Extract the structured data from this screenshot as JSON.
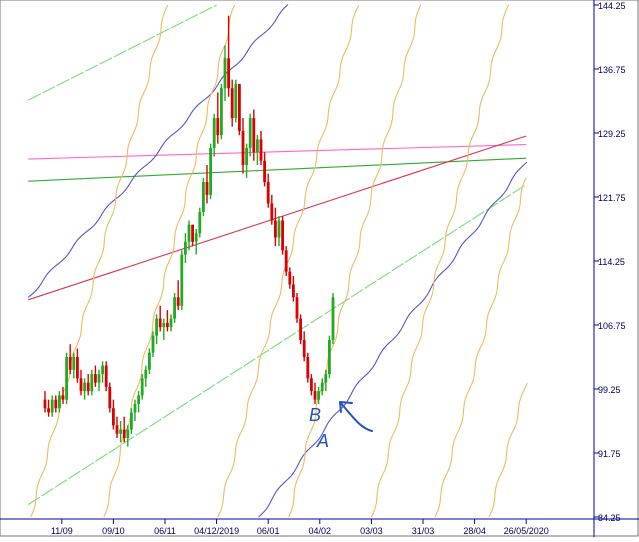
{
  "chart_data": {
    "type": "candlestick",
    "title": "",
    "xlabel": "",
    "ylabel": "",
    "ylim": [
      84.25,
      144.25
    ],
    "y_ticks": [
      144.25,
      136.75,
      129.25,
      121.75,
      114.25,
      106.75,
      99.25,
      91.75,
      84.25
    ],
    "x_tick_labels": [
      "11/09",
      "09/10",
      "06/11",
      "04/12/2019",
      "06/01",
      "04/02",
      "03/03",
      "31/03",
      "28/04",
      "26/05/2020"
    ],
    "grid": false,
    "legend": "none",
    "bars_index_range": [
      0,
      400
    ],
    "x_tick_positions_index": [
      14,
      57,
      100,
      143,
      186,
      229,
      272,
      315,
      358,
      401
    ],
    "candles": [
      [
        0,
        98.0,
        99.0,
        96.5,
        97.0
      ],
      [
        3,
        97.0,
        98.0,
        96.0,
        96.5
      ],
      [
        6,
        96.5,
        98.5,
        96.0,
        98.0
      ],
      [
        9,
        98.0,
        98.5,
        96.5,
        97.0
      ],
      [
        12,
        97.0,
        99.0,
        96.5,
        98.5
      ],
      [
        15,
        98.5,
        99.5,
        97.5,
        98.0
      ],
      [
        18,
        98.0,
        103.5,
        97.5,
        103.0
      ],
      [
        21,
        103.0,
        104.5,
        101.0,
        101.5
      ],
      [
        24,
        101.5,
        103.5,
        100.5,
        103.0
      ],
      [
        27,
        103.0,
        104.0,
        100.0,
        100.5
      ],
      [
        30,
        100.5,
        101.5,
        98.5,
        99.0
      ],
      [
        33,
        99.0,
        100.5,
        98.0,
        100.0
      ],
      [
        36,
        100.0,
        101.0,
        98.5,
        99.0
      ],
      [
        39,
        99.0,
        101.5,
        98.5,
        101.0
      ],
      [
        42,
        101.0,
        102.0,
        99.5,
        100.0
      ],
      [
        45,
        100.0,
        101.5,
        99.0,
        101.0
      ],
      [
        48,
        101.0,
        102.5,
        100.0,
        102.0
      ],
      [
        51,
        102.0,
        102.5,
        99.0,
        99.5
      ],
      [
        54,
        99.5,
        100.0,
        96.5,
        97.0
      ],
      [
        57,
        97.0,
        98.0,
        94.5,
        95.0
      ],
      [
        60,
        95.0,
        96.0,
        93.5,
        94.0
      ],
      [
        63,
        94.0,
        95.5,
        93.0,
        94.5
      ],
      [
        66,
        94.5,
        96.0,
        93.0,
        93.5
      ],
      [
        69,
        93.5,
        95.0,
        92.5,
        94.5
      ],
      [
        72,
        94.5,
        97.0,
        94.0,
        96.5
      ],
      [
        75,
        96.5,
        98.0,
        95.5,
        97.5
      ],
      [
        78,
        97.5,
        99.0,
        96.5,
        98.5
      ],
      [
        81,
        98.5,
        101.0,
        98.0,
        100.5
      ],
      [
        84,
        100.5,
        102.0,
        99.5,
        101.5
      ],
      [
        87,
        101.5,
        104.0,
        101.0,
        103.5
      ],
      [
        90,
        103.5,
        106.0,
        103.0,
        105.5
      ],
      [
        93,
        105.5,
        108.0,
        104.5,
        107.5
      ],
      [
        96,
        107.5,
        109.0,
        106.0,
        106.5
      ],
      [
        99,
        106.5,
        107.5,
        105.0,
        107.0
      ],
      [
        102,
        107.0,
        108.5,
        106.0,
        106.5
      ],
      [
        105,
        106.5,
        108.0,
        106.0,
        107.5
      ],
      [
        108,
        107.5,
        110.5,
        107.0,
        110.0
      ],
      [
        111,
        110.0,
        112.0,
        108.5,
        109.0
      ],
      [
        114,
        109.0,
        115.5,
        108.5,
        115.0
      ],
      [
        117,
        115.0,
        117.5,
        114.0,
        116.5
      ],
      [
        120,
        116.5,
        119.0,
        115.5,
        118.5
      ],
      [
        123,
        118.5,
        118.5,
        116.0,
        116.5
      ],
      [
        126,
        116.5,
        118.0,
        115.0,
        117.5
      ],
      [
        129,
        117.5,
        120.5,
        117.0,
        120.0
      ],
      [
        132,
        120.0,
        124.0,
        119.5,
        123.5
      ],
      [
        135,
        123.5,
        125.5,
        121.0,
        122.0
      ],
      [
        138,
        122.0,
        128.0,
        121.5,
        127.5
      ],
      [
        141,
        127.5,
        131.5,
        126.5,
        131.0
      ],
      [
        144,
        131.0,
        134.0,
        128.0,
        129.0
      ],
      [
        147,
        129.0,
        135.0,
        128.5,
        134.5
      ],
      [
        150,
        134.5,
        139.5,
        133.0,
        138.0
      ],
      [
        153,
        138.0,
        143.0,
        133.5,
        134.5
      ],
      [
        156,
        134.5,
        135.5,
        130.0,
        131.0
      ],
      [
        159,
        131.0,
        135.5,
        130.5,
        135.0
      ],
      [
        162,
        135.0,
        135.0,
        129.0,
        129.5
      ],
      [
        165,
        129.5,
        131.0,
        124.5,
        125.5
      ],
      [
        168,
        125.5,
        128.0,
        124.0,
        127.5
      ],
      [
        171,
        127.5,
        131.5,
        126.5,
        131.0
      ],
      [
        174,
        131.0,
        132.0,
        126.0,
        127.0
      ],
      [
        177,
        127.0,
        129.0,
        125.5,
        128.5
      ],
      [
        180,
        128.5,
        129.5,
        125.5,
        126.0
      ],
      [
        183,
        126.0,
        127.0,
        123.0,
        123.5
      ],
      [
        186,
        123.5,
        124.5,
        120.5,
        121.0
      ],
      [
        189,
        121.0,
        122.0,
        118.5,
        119.0
      ],
      [
        192,
        119.0,
        120.5,
        116.0,
        117.0
      ],
      [
        195,
        117.0,
        119.5,
        116.0,
        119.0
      ],
      [
        198,
        119.0,
        119.5,
        115.0,
        115.5
      ],
      [
        201,
        115.5,
        116.0,
        112.5,
        113.0
      ],
      [
        204,
        113.0,
        113.5,
        111.0,
        111.5
      ],
      [
        207,
        111.5,
        112.5,
        109.5,
        110.0
      ],
      [
        210,
        110.0,
        110.5,
        107.0,
        107.5
      ],
      [
        213,
        107.5,
        108.0,
        104.5,
        105.0
      ],
      [
        216,
        105.0,
        106.0,
        102.5,
        103.0
      ],
      [
        219,
        103.0,
        103.5,
        100.0,
        100.5
      ],
      [
        222,
        100.5,
        101.0,
        98.5,
        99.0
      ],
      [
        225,
        99.0,
        100.0,
        97.5,
        98.0
      ],
      [
        228,
        98.0,
        99.5,
        97.5,
        99.0
      ],
      [
        231,
        99.0,
        100.5,
        98.5,
        100.0
      ],
      [
        234,
        100.0,
        101.5,
        99.0,
        101.0
      ],
      [
        237,
        101.0,
        105.5,
        100.5,
        105.0
      ],
      [
        240,
        105.0,
        110.5,
        104.5,
        110.0
      ]
    ],
    "overlay_lines": [
      {
        "color": "#ff66cc",
        "style": "line",
        "points": [
          [
            -14,
            126.2
          ],
          [
            401,
            127.9
          ]
        ]
      },
      {
        "color": "#33aa33",
        "style": "line",
        "points": [
          [
            -14,
            123.6
          ],
          [
            401,
            126.3
          ]
        ]
      },
      {
        "color": "#dd3355",
        "style": "line",
        "points": [
          [
            -14,
            109.7
          ],
          [
            401,
            128.9
          ]
        ]
      },
      {
        "color": "#77dd77",
        "style": "dashed",
        "points": [
          [
            -14,
            85.7
          ],
          [
            401,
            123.2
          ]
        ]
      },
      {
        "color": "#77dd77",
        "style": "dashed",
        "points": [
          [
            -14,
            133.1
          ],
          [
            143,
            144.25
          ]
        ]
      },
      {
        "color": "#5555cc",
        "style": "wavy",
        "points": [
          [
            -14,
            110.0
          ],
          [
            203,
            144.25
          ]
        ]
      },
      {
        "color": "#5555cc",
        "style": "wavy",
        "points": [
          [
            178,
            84.25
          ],
          [
            401,
            125.9
          ]
        ]
      },
      {
        "color": "#f4b860",
        "style": "wavy",
        "points": [
          [
            -12,
            84.25
          ],
          [
            102,
            144.25
          ]
        ]
      },
      {
        "color": "#f4b860",
        "style": "wavy",
        "points": [
          [
            49,
            84.25
          ],
          [
            158,
            144.25
          ]
        ]
      },
      {
        "color": "#f4b860",
        "style": "wavy",
        "points": [
          [
            144,
            84.25
          ],
          [
            261,
            144.25
          ]
        ]
      },
      {
        "color": "#f4b860",
        "style": "wavy",
        "points": [
          [
            203,
            84.25
          ],
          [
            313,
            144.25
          ]
        ]
      },
      {
        "color": "#f4b860",
        "style": "wavy",
        "points": [
          [
            272,
            84.25
          ],
          [
            386,
            144.25
          ]
        ]
      },
      {
        "color": "#f4b860",
        "style": "wavy",
        "points": [
          [
            325,
            84.25
          ],
          [
            401,
            124.0
          ]
        ]
      },
      {
        "color": "#f4b860",
        "style": "wavy",
        "points": [
          [
            370,
            84.25
          ],
          [
            401,
            100.0
          ]
        ]
      }
    ],
    "annotations": [
      "B",
      "A"
    ],
    "annotation_color": "#2255bb",
    "up_color": "#22aa22",
    "down_color": "#dd0000",
    "axis_color": "#0000aa",
    "tick_label_color": "#000055"
  }
}
